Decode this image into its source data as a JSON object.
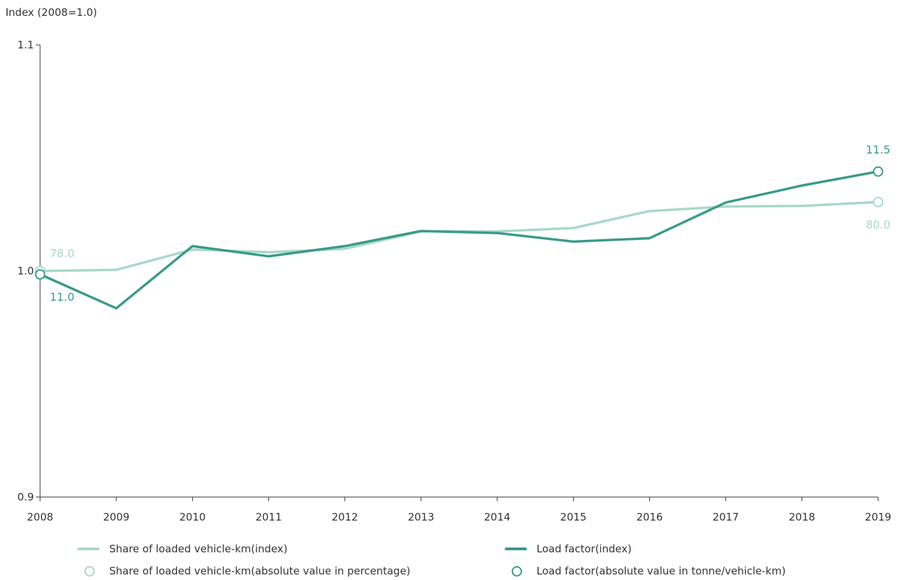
{
  "chart_data": {
    "type": "line",
    "title": "",
    "ylabel": "Index (2008=1.0)",
    "xlabel": "",
    "ylim": [
      0.9,
      1.1
    ],
    "yticks": [
      "0.9",
      "1.0",
      "1.1"
    ],
    "categories": [
      "2008",
      "2009",
      "2010",
      "2011",
      "2012",
      "2013",
      "2014",
      "2015",
      "2016",
      "2017",
      "2018",
      "2019"
    ],
    "grid": false,
    "legend_position": "bottom",
    "series": [
      {
        "name": "Share of loaded vehicle-km(index)",
        "color": "#a8d8c8",
        "values": [
          1.0,
          1.0005,
          1.0095,
          1.0083,
          1.0098,
          1.0175,
          1.0175,
          1.019,
          1.0265,
          1.0285,
          1.0288,
          1.0305
        ]
      },
      {
        "name": "Load factor(index)",
        "color": "#3a9a8a",
        "values": [
          0.9985,
          0.9835,
          1.011,
          1.0065,
          1.011,
          1.0177,
          1.0168,
          1.013,
          1.0145,
          1.0303,
          1.0378,
          1.044
        ]
      }
    ],
    "annotations": [
      {
        "series": "Share of loaded vehicle-km(absolute value in percentage)",
        "color": "#a8d8c8",
        "start_label": "78.0",
        "end_label": "80.0"
      },
      {
        "series": "Load factor(absolute value in tonne/vehicle-km)",
        "color": "#3a9a8a",
        "start_label": "11.0",
        "end_label": "11.5"
      }
    ]
  },
  "legend": {
    "share_index": "Share of loaded vehicle-km(index)",
    "load_index": "Load factor(index)",
    "share_abs": "Share of loaded vehicle-km(absolute value in percentage)",
    "load_abs": "Load factor(absolute value in tonne/vehicle-km)"
  }
}
